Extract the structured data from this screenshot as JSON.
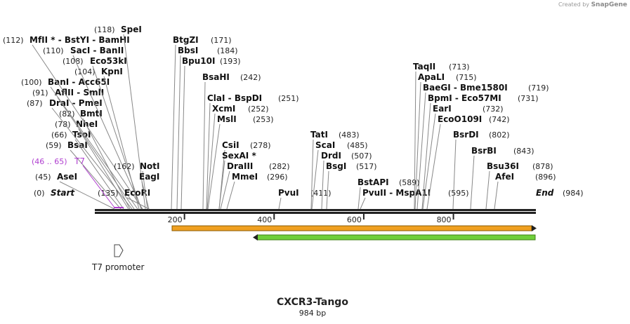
{
  "watermark": {
    "prefix": "Created by",
    "brand": "SnapGene"
  },
  "map": {
    "name": "CXCR3-Tango",
    "length_label": "984 bp",
    "length": 984,
    "ruler": [
      "200",
      "400",
      "600",
      "800"
    ]
  },
  "sites": [
    {
      "enz": "Start",
      "pos": "(0)",
      "italic": true,
      "star": false
    },
    {
      "enz": "AseI",
      "pos": "(45)"
    },
    {
      "enz": "BsaI",
      "pos": "(59)"
    },
    {
      "enz": "TsoI",
      "pos": "(66)"
    },
    {
      "enz": "NheI",
      "pos": "(78)"
    },
    {
      "enz": "BmtI",
      "pos": "(82)"
    },
    {
      "enz": "DraI  -  PmeI",
      "pos": "(87)"
    },
    {
      "enz": "AflII  -  SmlI",
      "pos": "(91)"
    },
    {
      "enz": "BanI  -  Acc65I",
      "pos": "(100)"
    },
    {
      "enz": "KpnI",
      "pos": "(104)"
    },
    {
      "enz": "Eco53kI",
      "pos": "(108)"
    },
    {
      "enz": "SacI  -  BanII",
      "pos": "(110)"
    },
    {
      "enz": "MfII *  -  BstYI  -  BamHI",
      "pos": "(112)"
    },
    {
      "enz": "SpeI",
      "pos": "(118)"
    },
    {
      "enz": "EcoRI",
      "pos": "(135)"
    },
    {
      "enz": "NotI",
      "pos": "(162)"
    },
    {
      "enz": "EagI",
      "pos": ""
    },
    {
      "enz": "BtgZI",
      "pos": "(171)"
    },
    {
      "enz": "BbsI",
      "pos": "(184)"
    },
    {
      "enz": "Bpu10I",
      "pos": "(193)"
    },
    {
      "enz": "BsaHI",
      "pos": "(242)"
    },
    {
      "enz": "ClaI  -  BspDI",
      "pos": "(251)"
    },
    {
      "enz": "XcmI",
      "pos": "(252)"
    },
    {
      "enz": "MslI",
      "pos": "(253)"
    },
    {
      "enz": "CsiI",
      "pos": "(278)"
    },
    {
      "enz": "SexAI *",
      "pos": ""
    },
    {
      "enz": "DraIII",
      "pos": "(282)"
    },
    {
      "enz": "MmeI",
      "pos": "(296)"
    },
    {
      "enz": "PvuI",
      "pos": "(411)"
    },
    {
      "enz": "TatI",
      "pos": "(483)"
    },
    {
      "enz": "ScaI",
      "pos": "(485)"
    },
    {
      "enz": "DrdI",
      "pos": "(507)"
    },
    {
      "enz": "BsgI",
      "pos": "(517)"
    },
    {
      "enz": "BstAPI",
      "pos": "(589)"
    },
    {
      "enz": "PvuII  -  MspA1I",
      "pos": "(595)"
    },
    {
      "enz": "TaqII",
      "pos": "(713)"
    },
    {
      "enz": "ApaLI",
      "pos": "(715)"
    },
    {
      "enz": "BaeGI  -  Bme1580I",
      "pos": "(719)"
    },
    {
      "enz": "BpmI  -  Eco57MI",
      "pos": "(731)"
    },
    {
      "enz": "EarI",
      "pos": "(732)"
    },
    {
      "enz": "EcoO109I",
      "pos": "(742)"
    },
    {
      "enz": "BsrDI",
      "pos": "(802)"
    },
    {
      "enz": "BsrBI",
      "pos": "(843)"
    },
    {
      "enz": "Bsu36I",
      "pos": "(878)"
    },
    {
      "enz": "AfeI",
      "pos": "(896)"
    },
    {
      "enz": "End",
      "pos": "(984)",
      "italic": true
    }
  ],
  "features": {
    "primer": {
      "range": "(46 .. 65)",
      "name": "T7"
    },
    "promoter_label": "T7 promoter",
    "colors": {
      "primer": "#b040d0",
      "orange": "#f0a020",
      "green": "#6fcf3a",
      "dna": "#222222"
    }
  }
}
